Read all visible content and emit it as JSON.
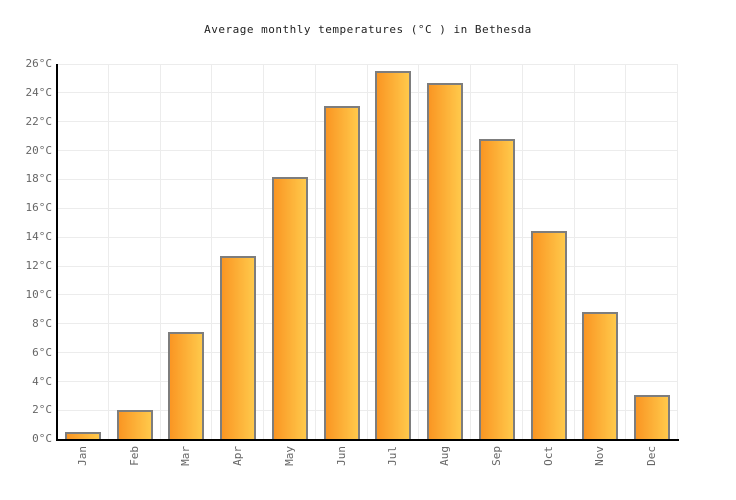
{
  "chart_data": {
    "type": "bar",
    "title": "Average monthly temperatures (°C ) in Bethesda",
    "categories": [
      "Jan",
      "Feb",
      "Mar",
      "Apr",
      "May",
      "Jun",
      "Jul",
      "Aug",
      "Sep",
      "Oct",
      "Nov",
      "Dec"
    ],
    "values": [
      0.5,
      2,
      7.4,
      12.7,
      18.2,
      23.1,
      25.5,
      24.7,
      20.8,
      14.4,
      8.8,
      3.1
    ],
    "xlabel": "",
    "ylabel": "",
    "ylim": [
      0,
      26
    ],
    "ytick_step": 2,
    "ytick_suffix": "°C",
    "grid": true,
    "legend": "none",
    "colors": {
      "bar_gradient_left": "#fa9623",
      "bar_gradient_right": "#ffc94b",
      "bar_border": "#7d7d7d",
      "gridline": "#ececec",
      "axis": "#000000",
      "tick_label": "#666666",
      "title": "#222222",
      "background": "#ffffff"
    }
  }
}
